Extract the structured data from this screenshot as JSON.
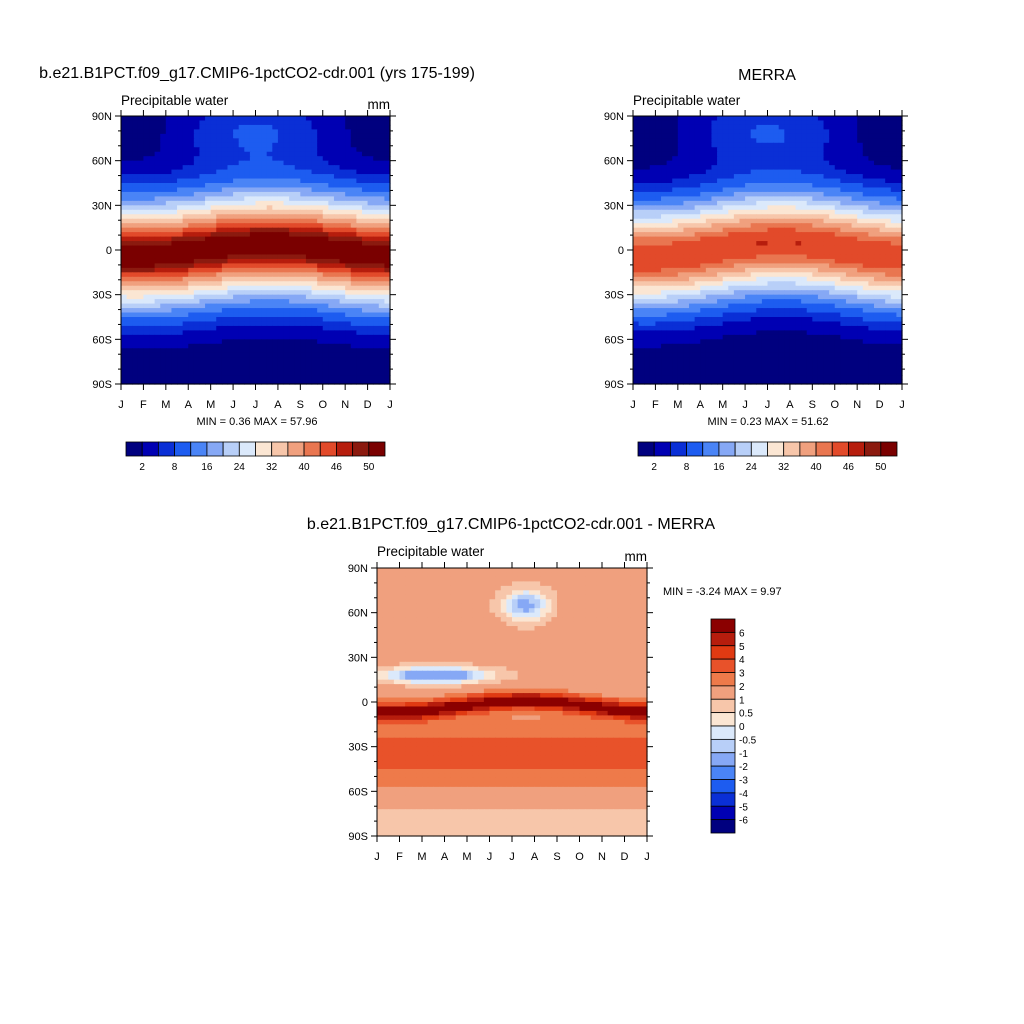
{
  "chart_data": [
    {
      "type": "heatmap",
      "panel": "model",
      "title": "b.e21.B1PCT.f09_g17.CMIP6-1pctCO2-cdr.001 (yrs 175-199)",
      "left_label": "Precipitable water",
      "units": "mm",
      "x_ticks": [
        "J",
        "F",
        "M",
        "A",
        "M",
        "J",
        "J",
        "A",
        "S",
        "O",
        "N",
        "D",
        "J"
      ],
      "y_ticks": [
        "90N",
        "60N",
        "30N",
        "0",
        "30S",
        "60S",
        "90S"
      ],
      "ylim": [
        -90,
        90
      ],
      "stats_label": "MIN =   0.36 MAX =   57.96",
      "min": 0.36,
      "max": 57.96,
      "colorbar_levels": [
        2,
        5,
        8,
        12,
        16,
        20,
        24,
        28,
        32,
        36,
        40,
        43,
        46,
        48,
        50
      ],
      "colorbar_labels": [
        "2",
        "8",
        "16",
        "24",
        "32",
        "40",
        "46",
        "50"
      ],
      "colorbar_colors": [
        "#00007f",
        "#0000b3",
        "#0a2fd6",
        "#1d5cf0",
        "#4a84f6",
        "#86a8f5",
        "#b8cff8",
        "#dbe9fb",
        "#fbe6d3",
        "#f7c6aa",
        "#f0a07e",
        "#e97650",
        "#e24a2a",
        "#b61d0d",
        "#8b1a0f",
        "#7a0000"
      ],
      "model_params": {
        "peak": 52,
        "width": 26,
        "shift": 4,
        "amp": 8,
        "floor": 1.5
      }
    },
    {
      "type": "heatmap",
      "panel": "obs",
      "title": "MERRA",
      "left_label": "Precipitable water",
      "units": "",
      "x_ticks": [
        "J",
        "F",
        "M",
        "A",
        "M",
        "J",
        "J",
        "A",
        "S",
        "O",
        "N",
        "D",
        "J"
      ],
      "y_ticks": [
        "90N",
        "60N",
        "30N",
        "0",
        "30S",
        "60S",
        "90S"
      ],
      "ylim": [
        -90,
        90
      ],
      "stats_label": "MIN =   0.23 MAX =   51.62",
      "min": 0.23,
      "max": 51.62,
      "colorbar_levels": [
        2,
        5,
        8,
        12,
        16,
        20,
        24,
        28,
        32,
        36,
        40,
        43,
        46,
        48,
        50
      ],
      "colorbar_labels": [
        "2",
        "8",
        "16",
        "24",
        "32",
        "40",
        "46",
        "50"
      ],
      "colorbar_colors": [
        "#00007f",
        "#0000b3",
        "#0a2fd6",
        "#1d5cf0",
        "#4a84f6",
        "#86a8f5",
        "#b8cff8",
        "#dbe9fb",
        "#fbe6d3",
        "#f7c6aa",
        "#f0a07e",
        "#e97650",
        "#e24a2a",
        "#b61d0d",
        "#8b1a0f",
        "#7a0000"
      ],
      "model_params": {
        "peak": 46,
        "width": 25,
        "shift": 5,
        "amp": 8,
        "floor": 1.0
      }
    },
    {
      "type": "heatmap",
      "panel": "diff",
      "title": "b.e21.B1PCT.f09_g17.CMIP6-1pctCO2-cdr.001 - MERRA",
      "left_label": "Precipitable water",
      "units": "mm",
      "x_ticks": [
        "J",
        "F",
        "M",
        "A",
        "M",
        "J",
        "J",
        "A",
        "S",
        "O",
        "N",
        "D",
        "J"
      ],
      "y_ticks": [
        "90N",
        "60N",
        "30N",
        "0",
        "30S",
        "60S",
        "90S"
      ],
      "ylim": [
        -90,
        90
      ],
      "stats_label": "MIN =  -3.24 MAX =   9.97",
      "min": -3.24,
      "max": 9.97,
      "colorbar_levels": [
        -6,
        -5,
        -4,
        -3,
        -2,
        -1,
        -0.5,
        0,
        0.5,
        1,
        2,
        3,
        4,
        5,
        6
      ],
      "colorbar_labels": [
        "6",
        "5",
        "4",
        "3",
        "2",
        "1",
        "0.5",
        "0",
        "-0.5",
        "-1",
        "-2",
        "-3",
        "-4",
        "-5",
        "-6"
      ],
      "colorbar_colors": [
        "#00007f",
        "#0000b3",
        "#0a2fd6",
        "#1d5cf0",
        "#4a84f6",
        "#86a8f5",
        "#b8cff8",
        "#dbe9fb",
        "#fbe6d3",
        "#f7c6aa",
        "#f0a07e",
        "#ee7a4a",
        "#e8522a",
        "#e03a12",
        "#b61d0d",
        "#8b0000"
      ]
    }
  ]
}
